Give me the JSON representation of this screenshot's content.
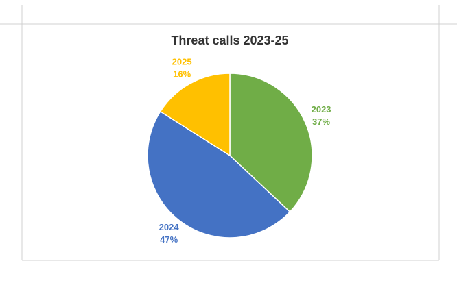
{
  "chart_data": {
    "type": "pie",
    "title": "Threat calls 2023-25",
    "categories": [
      "2023",
      "2024",
      "2025"
    ],
    "values": [
      37,
      47,
      16
    ],
    "value_labels": [
      "37%",
      "47%",
      "16%"
    ],
    "colors": [
      "#70ad47",
      "#4472c4",
      "#ffc000"
    ]
  }
}
